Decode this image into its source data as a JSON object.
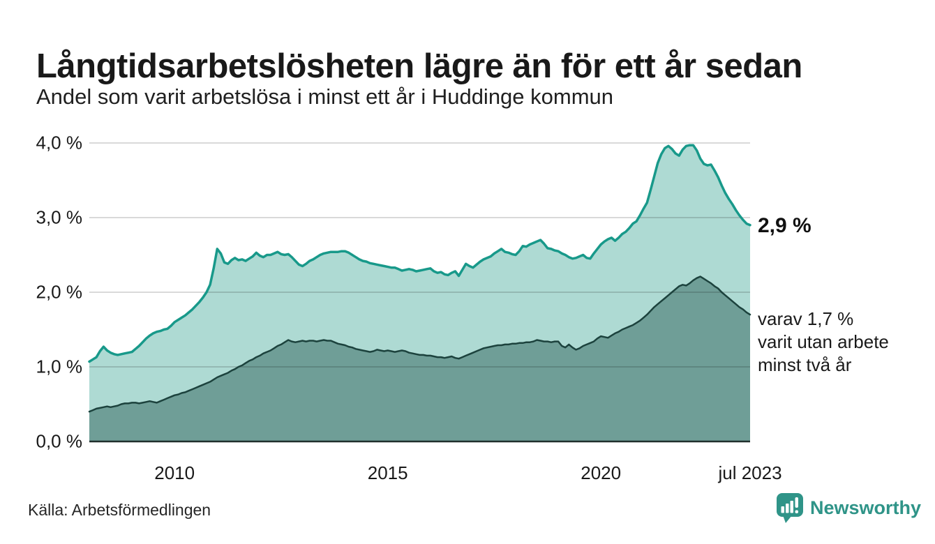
{
  "chart_data": {
    "type": "area",
    "title": "Långtidsarbetslösheten lägre än för ett år sedan",
    "subtitle": "Andel som varit arbetslösa i minst ett år i Huddinge kommun",
    "x_domain": [
      2008.0,
      2023.5
    ],
    "x_unit": "månad",
    "x_start": "jan 2008",
    "x_end": "jul 2023",
    "ylim": [
      0,
      4.0
    ],
    "grid": "horizontal",
    "legend": "none",
    "yticks": [
      {
        "label": "4,0 %",
        "value": 4.0
      },
      {
        "label": "3,0 %",
        "value": 3.0
      },
      {
        "label": "2,0 %",
        "value": 2.0
      },
      {
        "label": "1,0 %",
        "value": 1.0
      },
      {
        "label": "0,0 %",
        "value": 0.0
      }
    ],
    "xticks": [
      {
        "label": "2010",
        "year": 2010
      },
      {
        "label": "2015",
        "year": 2015
      },
      {
        "label": "2020",
        "year": 2020
      },
      {
        "label": "jul 2023",
        "year": 2023.5
      }
    ],
    "series": [
      {
        "name": "Andel arbetslösa minst ett år",
        "line_color": "#18998a",
        "fill_color": "#aedad3",
        "last_value_pct": 2.9,
        "values": [
          1.07,
          1.1,
          1.13,
          1.21,
          1.27,
          1.22,
          1.19,
          1.17,
          1.16,
          1.17,
          1.18,
          1.19,
          1.2,
          1.24,
          1.28,
          1.33,
          1.38,
          1.42,
          1.45,
          1.47,
          1.48,
          1.5,
          1.51,
          1.55,
          1.6,
          1.63,
          1.66,
          1.69,
          1.73,
          1.77,
          1.82,
          1.87,
          1.93,
          2.0,
          2.1,
          2.32,
          2.58,
          2.52,
          2.4,
          2.38,
          2.43,
          2.46,
          2.43,
          2.44,
          2.42,
          2.45,
          2.48,
          2.53,
          2.49,
          2.47,
          2.5,
          2.5,
          2.52,
          2.54,
          2.51,
          2.5,
          2.51,
          2.47,
          2.42,
          2.37,
          2.35,
          2.38,
          2.42,
          2.44,
          2.47,
          2.5,
          2.52,
          2.53,
          2.54,
          2.54,
          2.54,
          2.55,
          2.55,
          2.53,
          2.5,
          2.47,
          2.44,
          2.42,
          2.41,
          2.39,
          2.38,
          2.37,
          2.36,
          2.35,
          2.34,
          2.33,
          2.33,
          2.31,
          2.29,
          2.3,
          2.31,
          2.3,
          2.28,
          2.29,
          2.3,
          2.31,
          2.32,
          2.28,
          2.26,
          2.27,
          2.24,
          2.23,
          2.26,
          2.28,
          2.22,
          2.3,
          2.38,
          2.35,
          2.33,
          2.37,
          2.41,
          2.44,
          2.46,
          2.48,
          2.52,
          2.55,
          2.58,
          2.54,
          2.53,
          2.51,
          2.5,
          2.55,
          2.62,
          2.61,
          2.64,
          2.66,
          2.68,
          2.7,
          2.65,
          2.59,
          2.58,
          2.56,
          2.55,
          2.52,
          2.5,
          2.47,
          2.45,
          2.46,
          2.48,
          2.5,
          2.46,
          2.45,
          2.52,
          2.58,
          2.64,
          2.68,
          2.71,
          2.73,
          2.69,
          2.73,
          2.78,
          2.81,
          2.86,
          2.92,
          2.95,
          3.03,
          3.12,
          3.2,
          3.37,
          3.55,
          3.73,
          3.85,
          3.93,
          3.96,
          3.92,
          3.86,
          3.83,
          3.91,
          3.96,
          3.97,
          3.97,
          3.9,
          3.79,
          3.72,
          3.7,
          3.71,
          3.63,
          3.54,
          3.43,
          3.33,
          3.25,
          3.18,
          3.1,
          3.03,
          2.97,
          2.92,
          2.9
        ]
      },
      {
        "name": "varav arbetslösa minst två år",
        "line_color": "#1c423d",
        "fill_color": "#6f9e97",
        "last_value_pct": 1.7,
        "values": [
          0.4,
          0.42,
          0.44,
          0.45,
          0.46,
          0.47,
          0.46,
          0.47,
          0.48,
          0.5,
          0.51,
          0.51,
          0.52,
          0.52,
          0.51,
          0.52,
          0.53,
          0.54,
          0.53,
          0.52,
          0.54,
          0.56,
          0.58,
          0.6,
          0.62,
          0.63,
          0.65,
          0.66,
          0.68,
          0.7,
          0.72,
          0.74,
          0.76,
          0.78,
          0.8,
          0.83,
          0.86,
          0.88,
          0.9,
          0.92,
          0.95,
          0.97,
          1.0,
          1.02,
          1.05,
          1.08,
          1.1,
          1.13,
          1.15,
          1.18,
          1.2,
          1.22,
          1.25,
          1.28,
          1.3,
          1.33,
          1.36,
          1.34,
          1.33,
          1.34,
          1.35,
          1.34,
          1.35,
          1.35,
          1.34,
          1.35,
          1.36,
          1.35,
          1.35,
          1.33,
          1.31,
          1.3,
          1.29,
          1.27,
          1.26,
          1.24,
          1.23,
          1.22,
          1.21,
          1.2,
          1.21,
          1.23,
          1.22,
          1.21,
          1.22,
          1.21,
          1.2,
          1.21,
          1.22,
          1.21,
          1.19,
          1.18,
          1.17,
          1.16,
          1.16,
          1.15,
          1.15,
          1.14,
          1.13,
          1.13,
          1.12,
          1.13,
          1.14,
          1.12,
          1.11,
          1.13,
          1.15,
          1.17,
          1.19,
          1.21,
          1.23,
          1.25,
          1.26,
          1.27,
          1.28,
          1.29,
          1.29,
          1.3,
          1.3,
          1.31,
          1.31,
          1.32,
          1.32,
          1.33,
          1.33,
          1.34,
          1.36,
          1.35,
          1.34,
          1.34,
          1.33,
          1.34,
          1.34,
          1.28,
          1.26,
          1.3,
          1.26,
          1.23,
          1.25,
          1.28,
          1.3,
          1.32,
          1.34,
          1.38,
          1.41,
          1.4,
          1.39,
          1.42,
          1.45,
          1.47,
          1.5,
          1.52,
          1.54,
          1.56,
          1.59,
          1.62,
          1.66,
          1.7,
          1.75,
          1.8,
          1.84,
          1.88,
          1.92,
          1.96,
          2.0,
          2.04,
          2.08,
          2.1,
          2.09,
          2.12,
          2.16,
          2.19,
          2.21,
          2.18,
          2.15,
          2.12,
          2.08,
          2.05,
          2.0,
          1.96,
          1.92,
          1.88,
          1.84,
          1.8,
          1.77,
          1.73,
          1.7
        ]
      }
    ],
    "annotations": {
      "end_value_1yr": "2,9 %",
      "end_note_2yr_lines": [
        "varav 1,7 %",
        "varit utan arbete",
        "minst två år"
      ]
    },
    "colors": {
      "grid": "#d9d9d9",
      "axis": "#20302d",
      "text": "#191919",
      "brand": "#2f9488"
    }
  },
  "footer": {
    "source": "Källa: Arbetsförmedlingen",
    "brand": "Newsworthy"
  }
}
